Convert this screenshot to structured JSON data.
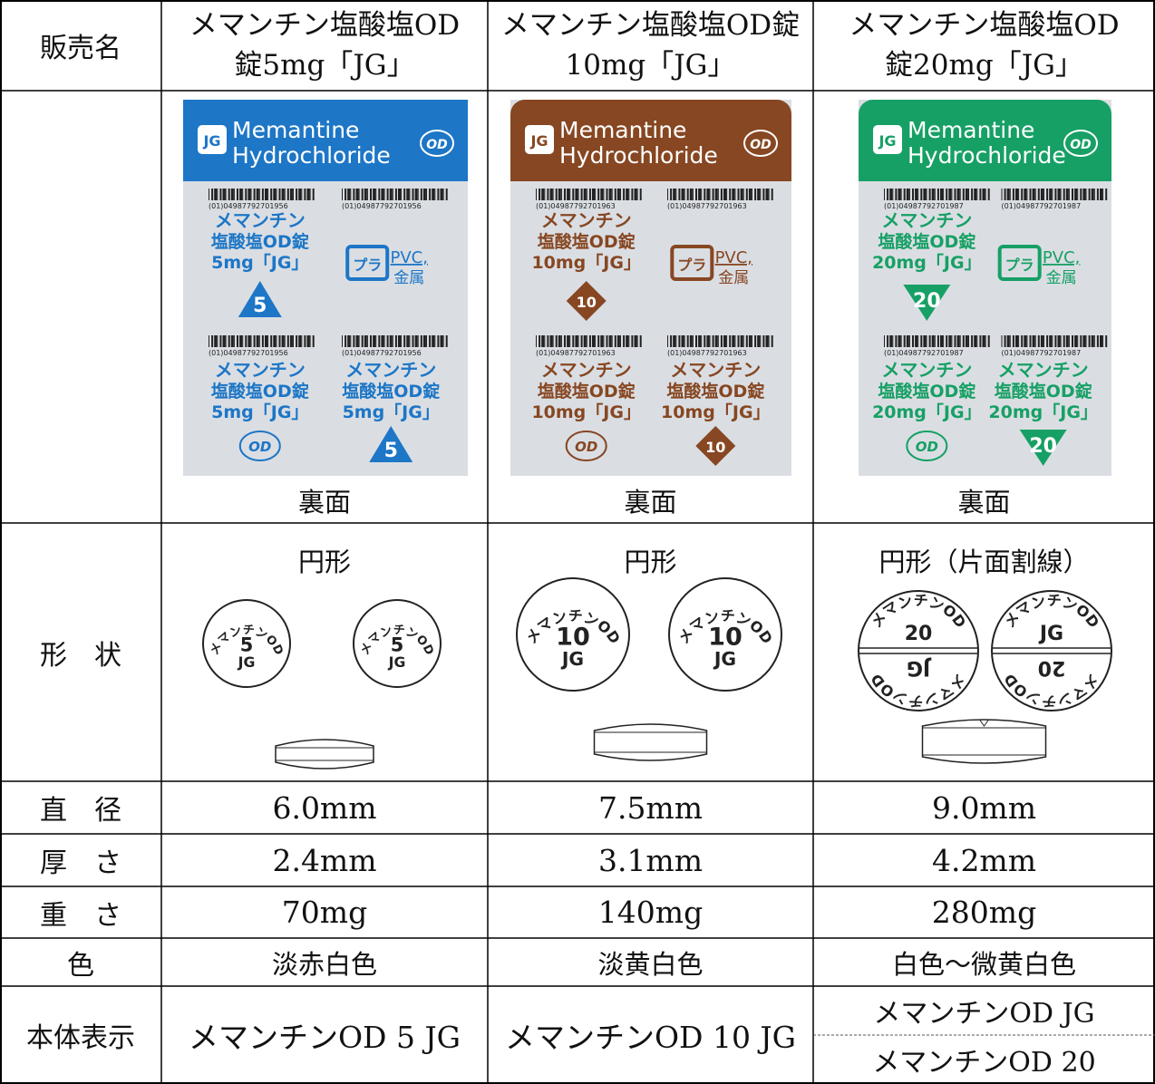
{
  "labels": [
    "販売名",
    "形　状",
    "直　径",
    "厚　さ",
    "重　さ",
    "色",
    "本体表示"
  ],
  "columns": [
    {
      "name": [
        "メマンチン塩酸塩OD",
        "錠5mg「JG」"
      ],
      "package": {
        "logo": "JG",
        "brand": [
          "Memantine",
          "Hydrochloride"
        ],
        "od": "OD",
        "barcode": "(01)04987792701956",
        "product": [
          "メマンチン",
          "塩酸塩OD錠",
          "5mg「JG」"
        ],
        "strength": "5",
        "recycle": "プラ",
        "material": [
          "PVC,",
          "金属"
        ]
      },
      "side": "裏面",
      "shape": "円形",
      "faces": [
        {
          "arc": "メマンチンOD",
          "lines": [
            "5",
            "JG"
          ]
        },
        {
          "arc": "メマンチンOD",
          "lines": [
            "5",
            "JG"
          ]
        }
      ],
      "diameter": "6.0mm",
      "thickness": "2.4mm",
      "weight": "70mg",
      "color": "淡赤白色",
      "body": [
        "メマンチンOD 5 JG"
      ]
    },
    {
      "name": [
        "メマンチン塩酸塩OD錠",
        "10mg「JG」"
      ],
      "package": {
        "logo": "JG",
        "brand": [
          "Memantine",
          "Hydrochloride"
        ],
        "od": "OD",
        "barcode": "(01)04987792701963",
        "product": [
          "メマンチン",
          "塩酸塩OD錠",
          "10mg「JG」"
        ],
        "strength": "10",
        "recycle": "プラ",
        "material": [
          "PVC,",
          "金属"
        ]
      },
      "side": "裏面",
      "shape": "円形",
      "faces": [
        {
          "arc": "メマンチンOD",
          "lines": [
            "10",
            "JG"
          ]
        },
        {
          "arc": "メマンチンOD",
          "lines": [
            "10",
            "JG"
          ]
        }
      ],
      "diameter": "7.5mm",
      "thickness": "3.1mm",
      "weight": "140mg",
      "color": "淡黄白色",
      "body": [
        "メマンチンOD 10 JG"
      ]
    },
    {
      "name": [
        "メマンチン塩酸塩OD",
        "錠20mg「JG」"
      ],
      "package": {
        "logo": "JG",
        "brand": [
          "Memantine",
          "Hydrochloride"
        ],
        "od": "OD",
        "barcode": "(01)04987792701987",
        "product": [
          "メマンチン",
          "塩酸塩OD錠",
          "20mg「JG」"
        ],
        "strength": "20",
        "recycle": "プラ",
        "material": [
          "PVC,",
          "金属"
        ]
      },
      "side": "裏面",
      "shape": "円形（片面割線）",
      "faces": [
        {
          "halves": [
            {
              "arc": "メマンチンOD",
              "lines": [
                "20"
              ]
            },
            {
              "arc": "メマンチンOD",
              "lines": [
                "JG"
              ]
            }
          ]
        },
        {
          "halves": [
            {
              "arc": "メマンチンOD",
              "lines": [
                "JG"
              ]
            },
            {
              "arc": "メマンチンOD",
              "lines": [
                "20"
              ]
            }
          ]
        }
      ],
      "diameter": "9.0mm",
      "thickness": "4.2mm",
      "weight": "280mg",
      "color": "白色～微黄白色",
      "body": [
        "メマンチンOD JG",
        "メマンチンOD 20"
      ]
    }
  ]
}
